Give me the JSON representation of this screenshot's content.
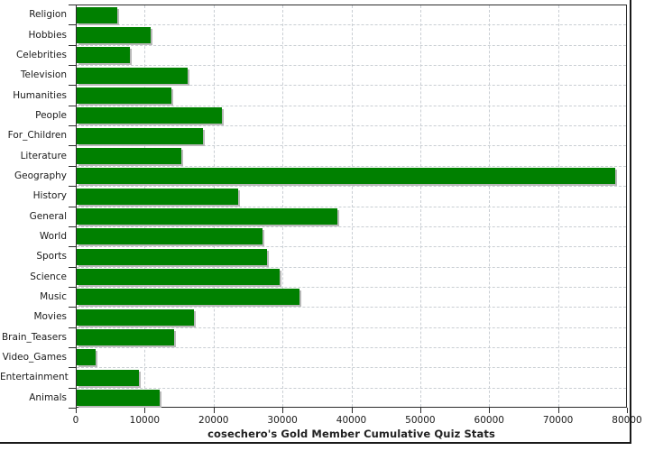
{
  "chart_data": {
    "type": "bar",
    "orientation": "horizontal",
    "title": "cosechero's Gold Member Cumulative Quiz Stats",
    "categories": [
      "Religion",
      "Hobbies",
      "Celebrities",
      "Television",
      "Humanities",
      "People",
      "For_Children",
      "Literature",
      "Geography",
      "History",
      "General",
      "World",
      "Sports",
      "Science",
      "Music",
      "Movies",
      "Brain_Teasers",
      "Video_Games",
      "Entertainment",
      "Animals"
    ],
    "values": [
      5900,
      10700,
      7700,
      16100,
      13800,
      21100,
      18300,
      15200,
      78200,
      23500,
      37900,
      27000,
      27600,
      29500,
      32400,
      17000,
      14100,
      2700,
      9000,
      12000
    ],
    "xlabel": "",
    "ylabel": "",
    "xlim": [
      0,
      80000
    ],
    "x_ticks": [
      0,
      10000,
      20000,
      30000,
      40000,
      50000,
      60000,
      70000,
      80000
    ],
    "grid": true,
    "legend": "none",
    "bar_color": "#008000",
    "bar_shadow_color": "#b9b9b9",
    "grid_color": "#c9ced3",
    "axis_color": "#2b2b2b",
    "text_color": "#1a1a1a",
    "background_color": "#ffffff"
  }
}
